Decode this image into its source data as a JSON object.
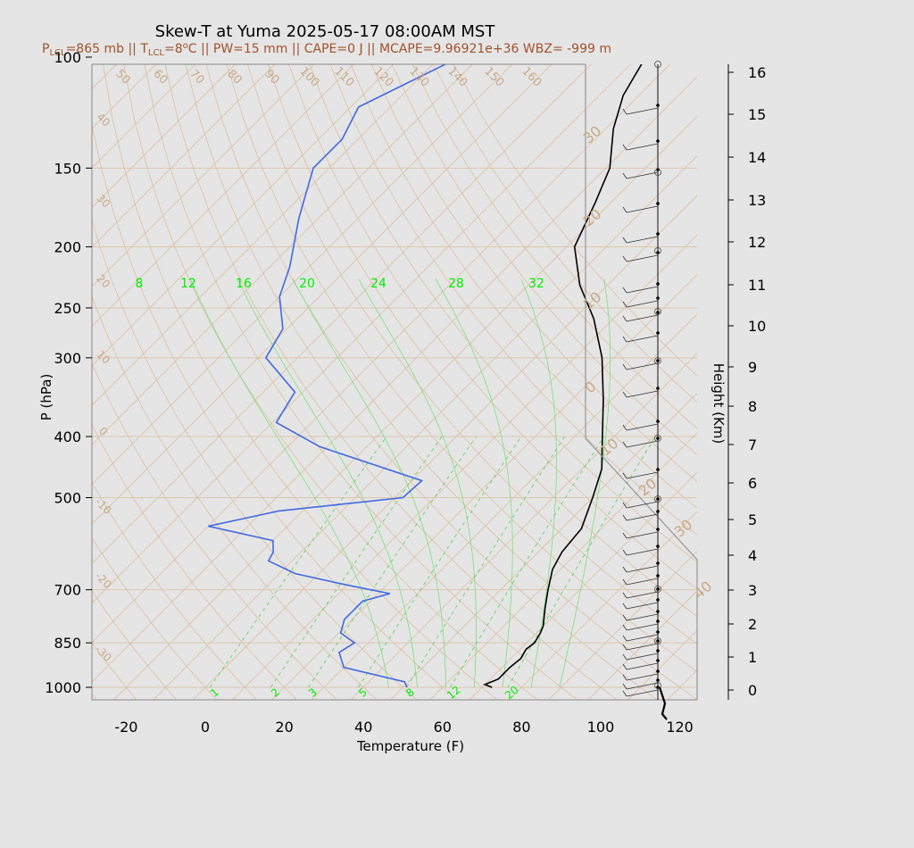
{
  "header": {
    "title": "Skew-T at Yuma 2025-05-17 08:00AM MST",
    "subtitle": {
      "p_lcl_prefix": "P",
      "p_lcl_sub": "LCL",
      "p_lcl_value": "=865 mb || T",
      "t_lcl_sub": "LCL",
      "t_lcl_value": "=8",
      "t_lcl_sup": "o",
      "rest": "C || PW=15 mm || CAPE=0 J || MCAPE=9.96921e+36 WBZ= -999 m"
    }
  },
  "chart_data": {
    "type": "skew-t",
    "xlabel": "Temperature (F)",
    "ylabel": "P (hPa)",
    "y2label": "Height (Km)",
    "x_ticks": [
      -20,
      0,
      20,
      40,
      60,
      80,
      100,
      120
    ],
    "pressure_ticks": [
      100,
      150,
      200,
      250,
      300,
      400,
      500,
      700,
      850,
      1000
    ],
    "height_ticks_km": [
      0,
      1,
      2,
      3,
      4,
      5,
      6,
      7,
      8,
      9,
      10,
      11,
      12,
      13,
      14,
      15,
      16
    ],
    "isotherm_labels_f": [
      50,
      60,
      70,
      80,
      90,
      100,
      110,
      120,
      130,
      140,
      150,
      160
    ],
    "isotherm_left_labels": [
      40,
      30,
      20,
      10,
      0,
      -10,
      -20,
      -30
    ],
    "isotherm_right_labels_c": [
      30,
      20,
      10,
      0
    ],
    "isotherm_right_lower_labels_c": [
      10,
      20,
      30,
      40
    ],
    "mixing_ratio_top_labels": [
      8,
      12,
      16,
      20,
      24,
      28,
      32
    ],
    "mixing_ratio_bottom_labels": [
      1,
      2,
      3,
      5,
      8,
      12,
      20
    ],
    "temperature_profile": {
      "color": "#000000",
      "points": [
        {
          "p": 1000,
          "t": 72.5
        },
        {
          "p": 990,
          "t": 70
        },
        {
          "p": 970,
          "t": 72
        },
        {
          "p": 930,
          "t": 72
        },
        {
          "p": 900,
          "t": 72.5
        },
        {
          "p": 870,
          "t": 71.5
        },
        {
          "p": 850,
          "t": 72
        },
        {
          "p": 820,
          "t": 71
        },
        {
          "p": 800,
          "t": 70
        },
        {
          "p": 750,
          "t": 66
        },
        {
          "p": 700,
          "t": 62
        },
        {
          "p": 650,
          "t": 58
        },
        {
          "p": 610,
          "t": 56
        },
        {
          "p": 560,
          "t": 55
        },
        {
          "p": 500,
          "t": 50
        },
        {
          "p": 450,
          "t": 45
        },
        {
          "p": 400,
          "t": 37
        },
        {
          "p": 350,
          "t": 28
        },
        {
          "p": 300,
          "t": 17
        },
        {
          "p": 260,
          "t": 5
        },
        {
          "p": 230,
          "t": -7
        },
        {
          "p": 200,
          "t": -18
        },
        {
          "p": 170,
          "t": -24
        },
        {
          "p": 150,
          "t": -29
        },
        {
          "p": 130,
          "t": -38
        },
        {
          "p": 115,
          "t": -44
        },
        {
          "p": 100,
          "t": -48
        }
      ]
    },
    "dewpoint_profile": {
      "color": "#4169e1",
      "points": [
        {
          "p": 1000,
          "t": 51
        },
        {
          "p": 980,
          "t": 49
        },
        {
          "p": 930,
          "t": 30
        },
        {
          "p": 880,
          "t": 25
        },
        {
          "p": 850,
          "t": 26.5
        },
        {
          "p": 820,
          "t": 20.5
        },
        {
          "p": 780,
          "t": 18
        },
        {
          "p": 760,
          "t": 18
        },
        {
          "p": 730,
          "t": 18
        },
        {
          "p": 710,
          "t": 23
        },
        {
          "p": 690,
          "t": 11
        },
        {
          "p": 660,
          "t": -6
        },
        {
          "p": 630,
          "t": -16
        },
        {
          "p": 610,
          "t": -17
        },
        {
          "p": 585,
          "t": -20
        },
        {
          "p": 555,
          "t": -40
        },
        {
          "p": 525,
          "t": -26
        },
        {
          "p": 500,
          "t": 2
        },
        {
          "p": 470,
          "t": 2.5
        },
        {
          "p": 415,
          "t": -32
        },
        {
          "p": 380,
          "t": -49
        },
        {
          "p": 340,
          "t": -52
        },
        {
          "p": 300,
          "t": -68
        },
        {
          "p": 270,
          "t": -71
        },
        {
          "p": 240,
          "t": -80
        },
        {
          "p": 215,
          "t": -85
        },
        {
          "p": 180,
          "t": -95
        },
        {
          "p": 150,
          "t": -104
        },
        {
          "p": 135,
          "t": -104
        },
        {
          "p": 120,
          "t": -108
        },
        {
          "p": 100,
          "t": -95
        }
      ]
    }
  }
}
